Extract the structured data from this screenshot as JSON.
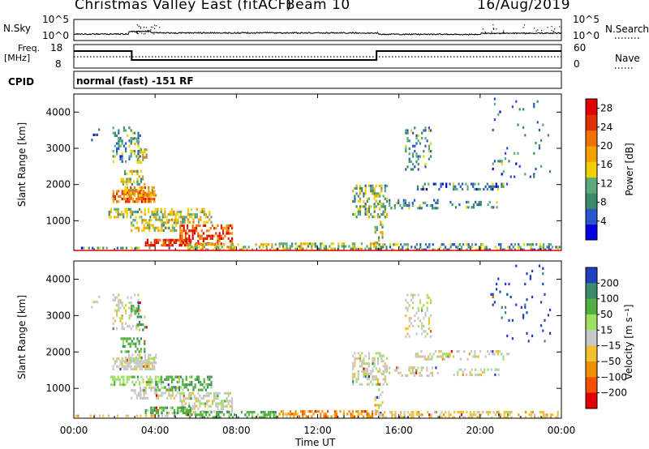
{
  "header": {
    "station": "Christmas Valley East (fitACF)",
    "beam": "Beam 10",
    "date": "16/Aug/2019"
  },
  "sky_panel": {
    "left_label": "N.Sky",
    "right_label": "N.Search",
    "left_ticks": [
      "10^5",
      "10^0"
    ],
    "right_ticks": [
      "10^5",
      "10^0"
    ]
  },
  "freq_panel": {
    "left_label_1": "Freq.",
    "left_label_2": "[MHz]",
    "right_label": "Nave",
    "left_ticks": [
      "18",
      "8"
    ],
    "right_ticks": [
      "60",
      "0"
    ]
  },
  "cpid_panel": {
    "label": "CPID",
    "text": "normal (fast) -151 RF"
  },
  "colors": {
    "power_scale": [
      "#0000e0",
      "#2a54c8",
      "#3a8c66",
      "#5aaa7c",
      "#f0d000",
      "#f4a000",
      "#f07000",
      "#e03000",
      "#e00000"
    ],
    "velocity_scale": [
      "#e00000",
      "#f05000",
      "#f09000",
      "#f0c030",
      "#c8c8c8",
      "#a0e060",
      "#50b040",
      "#3a8c66",
      "#2040c0"
    ]
  },
  "chart_data": [
    {
      "type": "heatmap",
      "name": "power",
      "ylabel": "Slant Range [km]",
      "ylim": [
        180,
        4500
      ],
      "yticks": [
        1000,
        2000,
        3000,
        4000
      ],
      "xlim_hours": [
        0,
        24
      ],
      "colorbar_label": "Power [dB]",
      "colorbar_ticks": [
        4,
        8,
        12,
        16,
        20,
        24,
        28
      ],
      "colorbar_range": [
        0,
        30
      ]
    },
    {
      "type": "heatmap",
      "name": "velocity",
      "ylabel": "Slant Range [km]",
      "ylim": [
        180,
        4500
      ],
      "yticks": [
        1000,
        2000,
        3000,
        4000
      ],
      "xlim_hours": [
        0,
        24
      ],
      "colorbar_label": "Velocity [m s⁻¹]",
      "colorbar_ticks": [
        200,
        100,
        50,
        15,
        -15,
        -50,
        -100,
        -200
      ]
    }
  ],
  "xaxis": {
    "label": "Time UT",
    "ticks": [
      "00:00",
      "04:00",
      "08:00",
      "12:00",
      "16:00",
      "20:00",
      "00:00"
    ]
  }
}
